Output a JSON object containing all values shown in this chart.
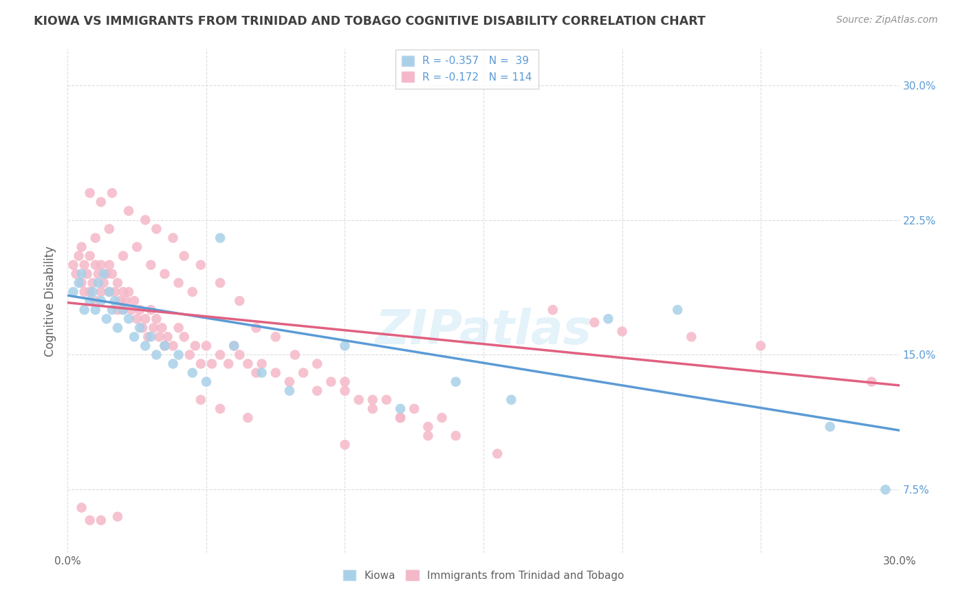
{
  "title": "KIOWA VS IMMIGRANTS FROM TRINIDAD AND TOBAGO COGNITIVE DISABILITY CORRELATION CHART",
  "source": "Source: ZipAtlas.com",
  "ylabel": "Cognitive Disability",
  "xlim": [
    0.0,
    0.3
  ],
  "ylim": [
    0.04,
    0.32
  ],
  "ytick_values": [
    0.075,
    0.15,
    0.225,
    0.3
  ],
  "ytick_labels": [
    "7.5%",
    "15.0%",
    "22.5%",
    "30.0%"
  ],
  "xtick_positions": [
    0.0,
    0.05,
    0.1,
    0.15,
    0.2,
    0.25,
    0.3
  ],
  "xtick_labels": [
    "0.0%",
    "",
    "",
    "",
    "",
    "",
    "30.0%"
  ],
  "watermark": "ZIPatlas",
  "legend_r1": "R = -0.357",
  "legend_n1": "N =  39",
  "legend_r2": "R = -0.172",
  "legend_n2": "N = 114",
  "color_blue": "#A8D0E8",
  "color_pink": "#F5B8C8",
  "line_color_blue": "#5B9BD5",
  "line_color_pink": "#E06080",
  "background_color": "#FFFFFF",
  "grid_color": "#DDDDDD",
  "title_color": "#404040",
  "source_color": "#909090",
  "ylabel_color": "#606060",
  "tick_color": "#5B9BD5",
  "bottom_label_color": "#606060",
  "blue_line_start_y": 0.183,
  "blue_line_end_y": 0.108,
  "pink_line_start_y": 0.179,
  "pink_line_end_y": 0.133,
  "kiowa_x": [
    0.002,
    0.004,
    0.005,
    0.006,
    0.008,
    0.009,
    0.01,
    0.011,
    0.012,
    0.013,
    0.014,
    0.015,
    0.016,
    0.017,
    0.018,
    0.02,
    0.022,
    0.024,
    0.026,
    0.028,
    0.03,
    0.032,
    0.035,
    0.038,
    0.04,
    0.045,
    0.05,
    0.055,
    0.06,
    0.07,
    0.08,
    0.1,
    0.12,
    0.14,
    0.16,
    0.195,
    0.22,
    0.275,
    0.295
  ],
  "kiowa_y": [
    0.185,
    0.19,
    0.195,
    0.175,
    0.18,
    0.185,
    0.175,
    0.19,
    0.18,
    0.195,
    0.17,
    0.185,
    0.175,
    0.18,
    0.165,
    0.175,
    0.17,
    0.16,
    0.165,
    0.155,
    0.16,
    0.15,
    0.155,
    0.145,
    0.15,
    0.14,
    0.135,
    0.215,
    0.155,
    0.14,
    0.13,
    0.155,
    0.12,
    0.135,
    0.125,
    0.17,
    0.175,
    0.11,
    0.075
  ],
  "trini_x": [
    0.002,
    0.003,
    0.004,
    0.005,
    0.005,
    0.006,
    0.006,
    0.007,
    0.008,
    0.008,
    0.009,
    0.01,
    0.01,
    0.011,
    0.012,
    0.012,
    0.013,
    0.014,
    0.015,
    0.015,
    0.016,
    0.017,
    0.018,
    0.018,
    0.019,
    0.02,
    0.02,
    0.021,
    0.022,
    0.023,
    0.024,
    0.025,
    0.026,
    0.027,
    0.028,
    0.029,
    0.03,
    0.031,
    0.032,
    0.033,
    0.034,
    0.035,
    0.036,
    0.038,
    0.04,
    0.042,
    0.044,
    0.046,
    0.048,
    0.05,
    0.052,
    0.055,
    0.058,
    0.06,
    0.062,
    0.065,
    0.068,
    0.07,
    0.075,
    0.08,
    0.085,
    0.09,
    0.095,
    0.1,
    0.105,
    0.11,
    0.115,
    0.12,
    0.125,
    0.13,
    0.135,
    0.14,
    0.01,
    0.015,
    0.02,
    0.025,
    0.03,
    0.035,
    0.04,
    0.045,
    0.008,
    0.012,
    0.016,
    0.022,
    0.028,
    0.032,
    0.038,
    0.042,
    0.048,
    0.055,
    0.062,
    0.068,
    0.075,
    0.082,
    0.09,
    0.1,
    0.11,
    0.12,
    0.13,
    0.155,
    0.048,
    0.055,
    0.065,
    0.1,
    0.175,
    0.19,
    0.2,
    0.225,
    0.25,
    0.29,
    0.005,
    0.008,
    0.012,
    0.018
  ],
  "trini_y": [
    0.2,
    0.195,
    0.205,
    0.21,
    0.19,
    0.2,
    0.185,
    0.195,
    0.205,
    0.185,
    0.19,
    0.2,
    0.18,
    0.195,
    0.2,
    0.185,
    0.19,
    0.195,
    0.185,
    0.2,
    0.195,
    0.185,
    0.19,
    0.175,
    0.18,
    0.185,
    0.175,
    0.18,
    0.185,
    0.175,
    0.18,
    0.17,
    0.175,
    0.165,
    0.17,
    0.16,
    0.175,
    0.165,
    0.17,
    0.16,
    0.165,
    0.155,
    0.16,
    0.155,
    0.165,
    0.16,
    0.15,
    0.155,
    0.145,
    0.155,
    0.145,
    0.15,
    0.145,
    0.155,
    0.15,
    0.145,
    0.14,
    0.145,
    0.14,
    0.135,
    0.14,
    0.13,
    0.135,
    0.13,
    0.125,
    0.12,
    0.125,
    0.115,
    0.12,
    0.11,
    0.115,
    0.105,
    0.215,
    0.22,
    0.205,
    0.21,
    0.2,
    0.195,
    0.19,
    0.185,
    0.24,
    0.235,
    0.24,
    0.23,
    0.225,
    0.22,
    0.215,
    0.205,
    0.2,
    0.19,
    0.18,
    0.165,
    0.16,
    0.15,
    0.145,
    0.135,
    0.125,
    0.115,
    0.105,
    0.095,
    0.125,
    0.12,
    0.115,
    0.1,
    0.175,
    0.168,
    0.163,
    0.16,
    0.155,
    0.135,
    0.065,
    0.058,
    0.058,
    0.06
  ]
}
